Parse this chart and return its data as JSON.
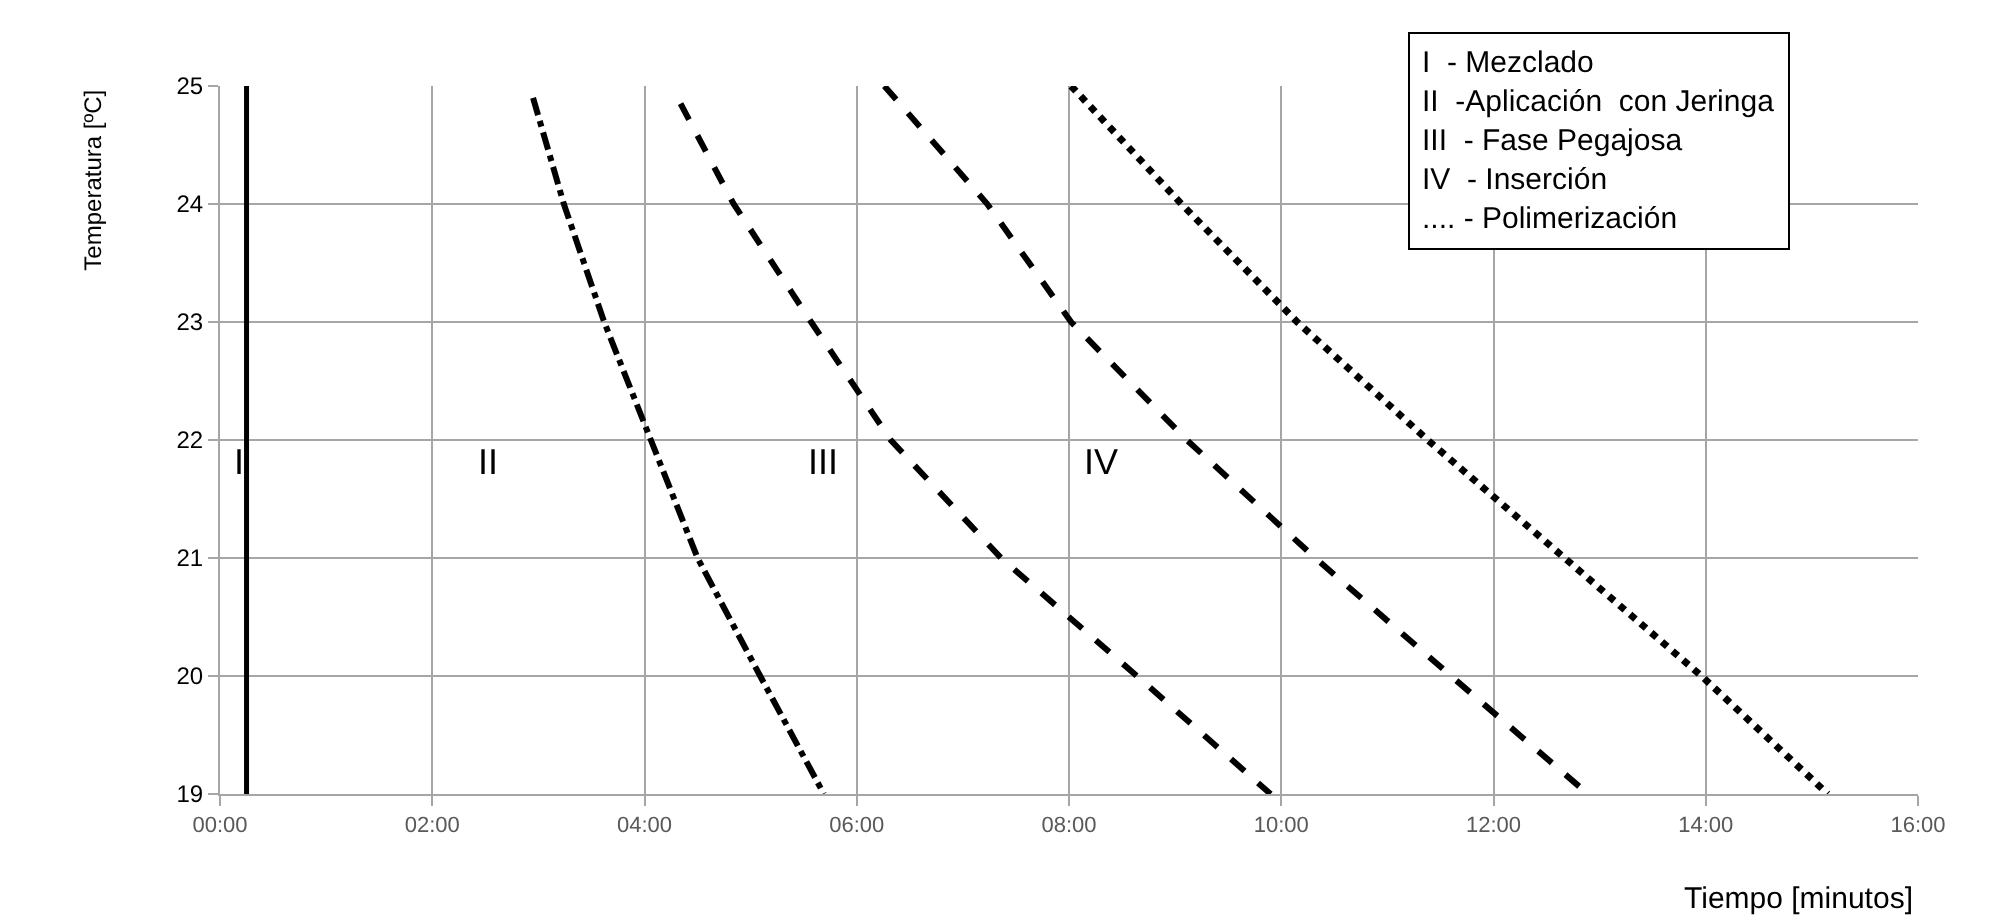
{
  "chart_data": {
    "type": "line",
    "xlabel": "Tiempo [minutos]",
    "ylabel": "Temperatura [ºC]",
    "series": [
      {
        "color": "#000000",
        "line_style": "solid",
        "x": [
          0.25,
          0.25
        ],
        "values": [
          19,
          25
        ]
      },
      {
        "color": "#000000",
        "line_style": "dashdot",
        "x": [
          2.95,
          3.24,
          3.62,
          4.06,
          4.5,
          5.09,
          5.69
        ],
        "values": [
          24.9,
          24,
          23,
          22,
          21,
          20,
          19
        ]
      },
      {
        "color": "#000000",
        "line_style": "dashed",
        "x": [
          4.34,
          4.84,
          5.57,
          6.32,
          7.36,
          8.64,
          9.9
        ],
        "values": [
          24.85,
          24,
          23,
          22,
          21,
          20,
          19
        ]
      },
      {
        "color": "#000000",
        "line_style": "dashed",
        "x": [
          6.26,
          7.23,
          8.02,
          9.11,
          10.32,
          11.6,
          12.89
        ],
        "values": [
          25,
          24,
          23,
          22,
          21,
          20,
          19
        ]
      },
      {
        "color": "#000000",
        "line_style": "dotted",
        "x": [
          8.02,
          9.06,
          10.15,
          11.38,
          12.67,
          13.96,
          15.15
        ],
        "values": [
          25,
          24,
          23,
          22,
          21,
          20,
          19
        ]
      }
    ],
    "xlim": [
      0,
      16
    ],
    "xticks": [
      {
        "value": 0,
        "label": "00:00"
      },
      {
        "value": 2,
        "label": "02:00"
      },
      {
        "value": 4,
        "label": "04:00"
      },
      {
        "value": 6,
        "label": "06:00"
      },
      {
        "value": 8,
        "label": "08:00"
      },
      {
        "value": 10,
        "label": "10:00"
      },
      {
        "value": 12,
        "label": "12:00"
      },
      {
        "value": 14,
        "label": "14:00"
      },
      {
        "value": 16,
        "label": "16:00"
      }
    ],
    "ylim": [
      19,
      25
    ],
    "yticks": [
      19,
      20,
      21,
      22,
      23,
      24,
      25
    ],
    "grid": true,
    "marker": "none",
    "annotations": [
      "I",
      "II",
      "III",
      "IV",
      "I  - Mezclado",
      "II  -Aplicación  con Jeringa",
      "III  - Fase Pegajosa",
      "IV  - Inserción",
      ".... - Polimerización"
    ]
  }
}
